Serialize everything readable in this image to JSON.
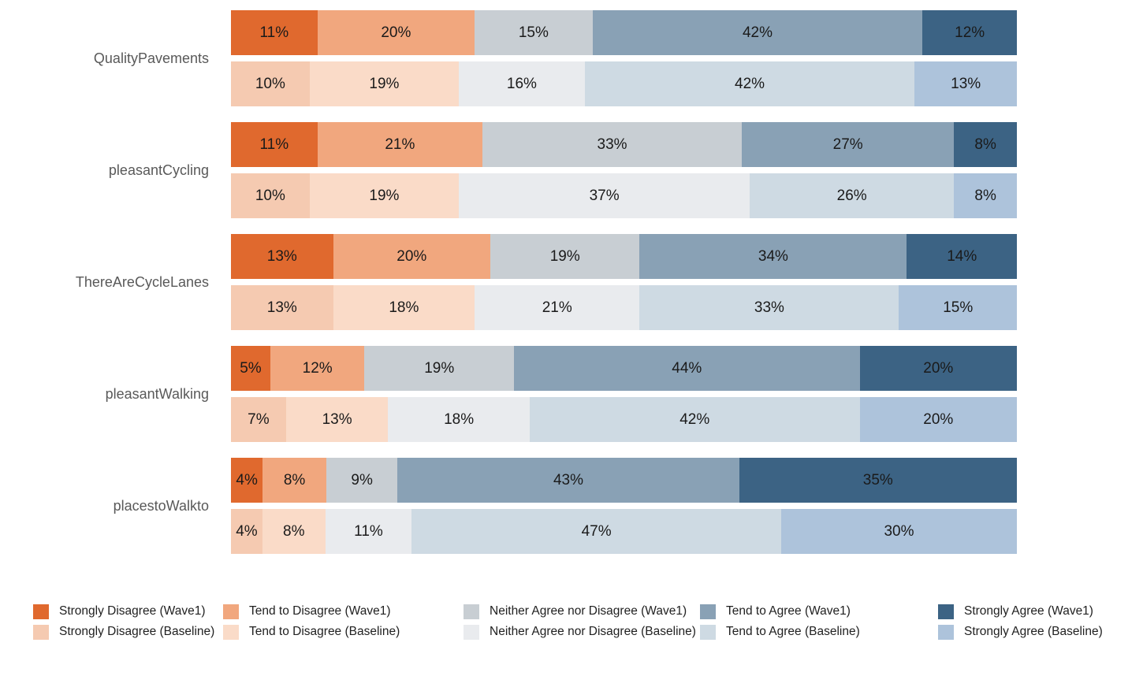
{
  "chart_data": {
    "type": "bar",
    "orientation": "horizontal",
    "stacked": true,
    "unit": "%",
    "grid": false,
    "legend_position": "bottom",
    "categories": [
      "QualityPavements",
      "pleasantCycling",
      "ThereAreCycleLanes",
      "pleasantWalking",
      "placestoWalkto"
    ],
    "waves": [
      "Wave1",
      "Baseline"
    ],
    "series_labels": [
      "Strongly Disagree",
      "Tend to Disagree",
      "Neither Agree nor Disagree",
      "Tend to Agree",
      "Strongly Agree"
    ],
    "colors": {
      "wave1": [
        "#e0692e",
        "#f1a77e",
        "#c8ced3",
        "#89a1b5",
        "#3c6384"
      ],
      "baseline": [
        "#f5cab1",
        "#fadbc8",
        "#e9ebee",
        "#cedae3",
        "#adc3db"
      ]
    },
    "values": {
      "QualityPavements": {
        "wave1": [
          11,
          20,
          15,
          42,
          12
        ],
        "baseline": [
          10,
          19,
          16,
          42,
          13
        ]
      },
      "pleasantCycling": {
        "wave1": [
          11,
          21,
          33,
          27,
          8
        ],
        "baseline": [
          10,
          19,
          37,
          26,
          8
        ]
      },
      "ThereAreCycleLanes": {
        "wave1": [
          13,
          20,
          19,
          34,
          14
        ],
        "baseline": [
          13,
          18,
          21,
          33,
          15
        ]
      },
      "pleasantWalking": {
        "wave1": [
          5,
          12,
          19,
          44,
          20
        ],
        "baseline": [
          7,
          13,
          18,
          42,
          20
        ]
      },
      "placestoWalkto": {
        "wave1": [
          4,
          8,
          9,
          43,
          35
        ],
        "baseline": [
          4,
          8,
          11,
          47,
          30
        ]
      }
    },
    "legend_entries": [
      {
        "label": "Strongly Disagree (Wave1)",
        "color": "#e0692e"
      },
      {
        "label": "Strongly Disagree (Baseline)",
        "color": "#f5cab1"
      },
      {
        "label": "Tend to Disagree (Wave1)",
        "color": "#f1a77e"
      },
      {
        "label": "Tend to Disagree (Baseline)",
        "color": "#fadbc8"
      },
      {
        "label": "Neither Agree nor Disagree (Wave1)",
        "color": "#c8ced3"
      },
      {
        "label": "Neither Agree nor Disagree (Baseline)",
        "color": "#e9ebee"
      },
      {
        "label": "Tend to Agree (Wave1)",
        "color": "#89a1b5"
      },
      {
        "label": "Tend to Agree (Baseline)",
        "color": "#cedae3"
      },
      {
        "label": "Strongly Agree (Wave1)",
        "color": "#3c6384"
      },
      {
        "label": "Strongly Agree (Baseline)",
        "color": "#adc3db"
      }
    ]
  }
}
